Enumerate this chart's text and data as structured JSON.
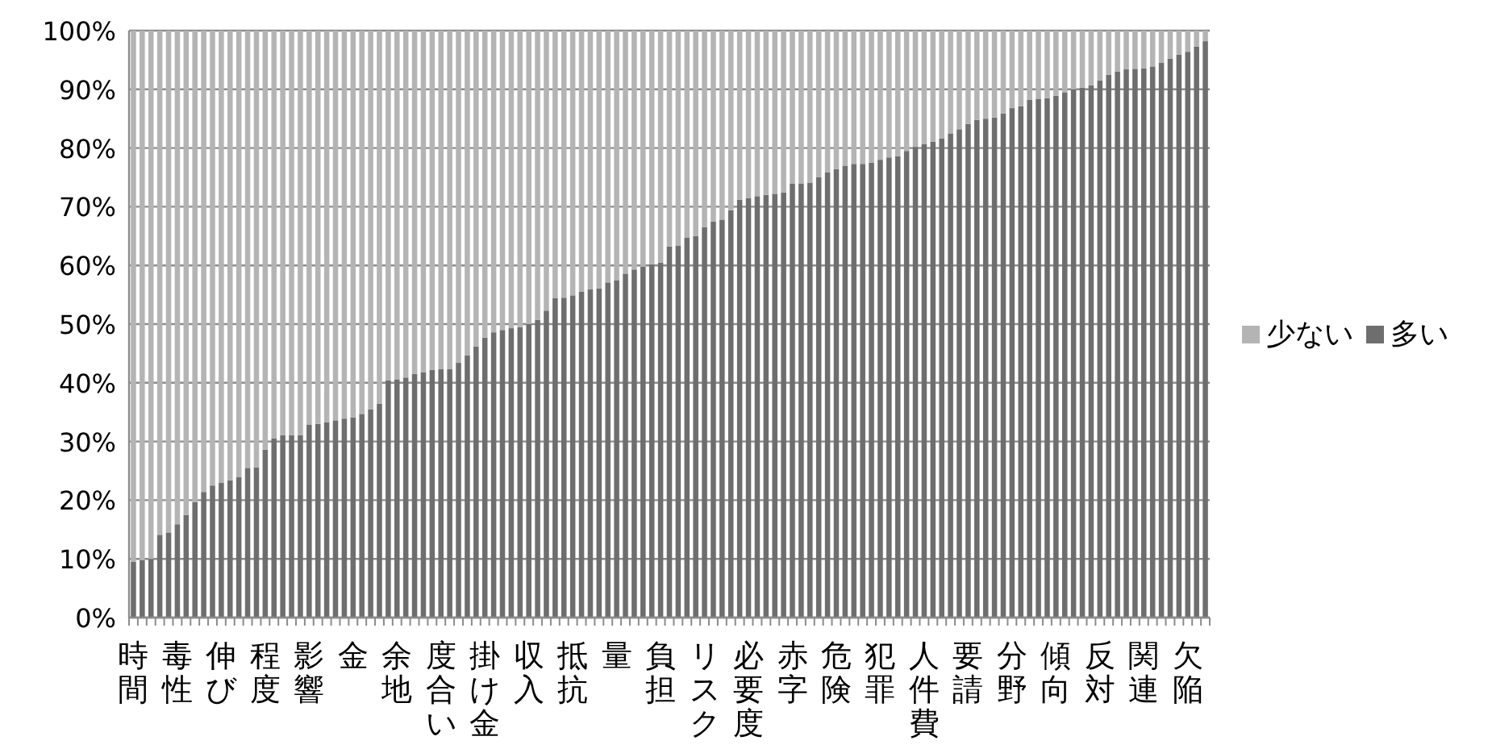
{
  "chart_data": {
    "type": "bar",
    "stacked": true,
    "grid": "y",
    "legend": "right",
    "categories": [
      "時間",
      null,
      null,
      null,
      null,
      "毒性",
      null,
      null,
      null,
      null,
      "伸び",
      null,
      null,
      null,
      null,
      "程度",
      null,
      null,
      null,
      null,
      "影響",
      null,
      null,
      null,
      null,
      "金",
      null,
      null,
      null,
      null,
      "余地",
      null,
      null,
      null,
      null,
      "度合い",
      null,
      null,
      null,
      null,
      "掛け金",
      null,
      null,
      null,
      null,
      "収入",
      null,
      null,
      null,
      null,
      "抵抗",
      null,
      null,
      null,
      null,
      "量",
      null,
      null,
      null,
      null,
      "負担",
      null,
      null,
      null,
      null,
      "リスク",
      null,
      null,
      null,
      null,
      "必要度",
      null,
      null,
      null,
      null,
      "赤字",
      null,
      null,
      null,
      null,
      "危険",
      null,
      null,
      null,
      null,
      "犯罪",
      null,
      null,
      null,
      null,
      "人件費",
      null,
      null,
      null,
      null,
      "要請",
      null,
      null,
      null,
      null,
      "分野",
      null,
      null,
      null,
      null,
      "傾向",
      null,
      null,
      null,
      null,
      "反対",
      null,
      null,
      null,
      null,
      "関連",
      null,
      null,
      null,
      null,
      "欠陥",
      null,
      null
    ],
    "ylim": [
      0,
      100
    ],
    "yticks": [
      {
        "value": 0,
        "label": "0%"
      },
      {
        "value": 10,
        "label": "10%"
      },
      {
        "value": 20,
        "label": "20%"
      },
      {
        "value": 30,
        "label": "30%"
      },
      {
        "value": 40,
        "label": "40%"
      },
      {
        "value": 50,
        "label": "50%"
      },
      {
        "value": 60,
        "label": "60%"
      },
      {
        "value": 70,
        "label": "70%"
      },
      {
        "value": 80,
        "label": "80%"
      },
      {
        "value": 90,
        "label": "90%"
      },
      {
        "value": 100,
        "label": "100%"
      }
    ],
    "series": [
      {
        "name": "多い",
        "color": "#6e6e6e",
        "values": [
          9.5,
          9.8,
          10,
          14.1,
          14.5,
          15.9,
          17.5,
          19.7,
          21.4,
          22.5,
          23,
          23.4,
          23.9,
          25.5,
          25.6,
          28.6,
          30.5,
          31.1,
          31.1,
          31.1,
          32.9,
          33,
          33.3,
          33.6,
          33.9,
          34.1,
          34.7,
          35.5,
          36.4,
          40.4,
          40.6,
          40.9,
          41.5,
          41.8,
          42.2,
          42.3,
          42.3,
          43.4,
          44.7,
          46.2,
          47.7,
          48.6,
          49,
          49.3,
          49.5,
          50,
          50.7,
          52.3,
          54.4,
          54.5,
          54.9,
          55.5,
          55.9,
          56.1,
          57.1,
          57.5,
          58.6,
          59.3,
          59.8,
          60.2,
          60.5,
          63.2,
          63.4,
          64.7,
          65,
          66.5,
          67.5,
          67.8,
          69.4,
          71.2,
          71.5,
          71.8,
          72,
          72.2,
          72.4,
          73.9,
          73.9,
          74.1,
          75,
          75.9,
          76.4,
          77,
          77.3,
          77.3,
          77.5,
          78,
          78.4,
          78.6,
          79.5,
          80.2,
          80.7,
          81.1,
          81.6,
          82.5,
          83.2,
          84.1,
          84.8,
          85,
          85.2,
          85.9,
          86.8,
          87.1,
          88.2,
          88.4,
          88.5,
          88.9,
          89.5,
          90,
          90.3,
          90.7,
          91.5,
          92.5,
          93,
          93.4,
          93.5,
          93.6,
          93.9,
          94.5,
          95.2,
          95.9,
          96.4,
          97.3,
          98.2
        ]
      },
      {
        "name": "少ない",
        "color": "#b4b4b4",
        "values": [
          90.5,
          90.2,
          90,
          85.9,
          85.5,
          84.1,
          82.5,
          80.3,
          78.6,
          77.5,
          77,
          76.6,
          76.1,
          74.5,
          74.4,
          71.4,
          69.5,
          68.9,
          68.9,
          68.9,
          67.1,
          67,
          66.7,
          66.4,
          66.1,
          65.9,
          65.3,
          64.5,
          63.6,
          59.6,
          59.4,
          59.1,
          58.5,
          58.2,
          57.8,
          57.7,
          57.7,
          56.6,
          55.3,
          53.8,
          52.3,
          51.4,
          51,
          50.7,
          50.5,
          50,
          49.3,
          47.7,
          45.6,
          45.5,
          45.1,
          44.5,
          44.1,
          43.9,
          42.9,
          42.5,
          41.4,
          40.7,
          40.2,
          39.8,
          39.5,
          36.8,
          36.6,
          35.3,
          35,
          33.5,
          32.5,
          32.2,
          30.6,
          28.8,
          28.5,
          28.2,
          28,
          27.8,
          27.6,
          26.1,
          26.1,
          25.9,
          25,
          24.1,
          23.6,
          23,
          22.7,
          22.7,
          22.5,
          22,
          21.6,
          21.4,
          20.5,
          19.8,
          19.3,
          18.9,
          18.4,
          17.5,
          16.8,
          15.9,
          15.2,
          15,
          14.8,
          14.1,
          13.2,
          12.9,
          11.8,
          11.6,
          11.5,
          11.1,
          10.5,
          10,
          9.7,
          9.3,
          8.5,
          7.5,
          7,
          6.6,
          6.5,
          6.4,
          6.1,
          5.5,
          4.8,
          4.1,
          3.6,
          2.7,
          1.8
        ]
      }
    ]
  }
}
